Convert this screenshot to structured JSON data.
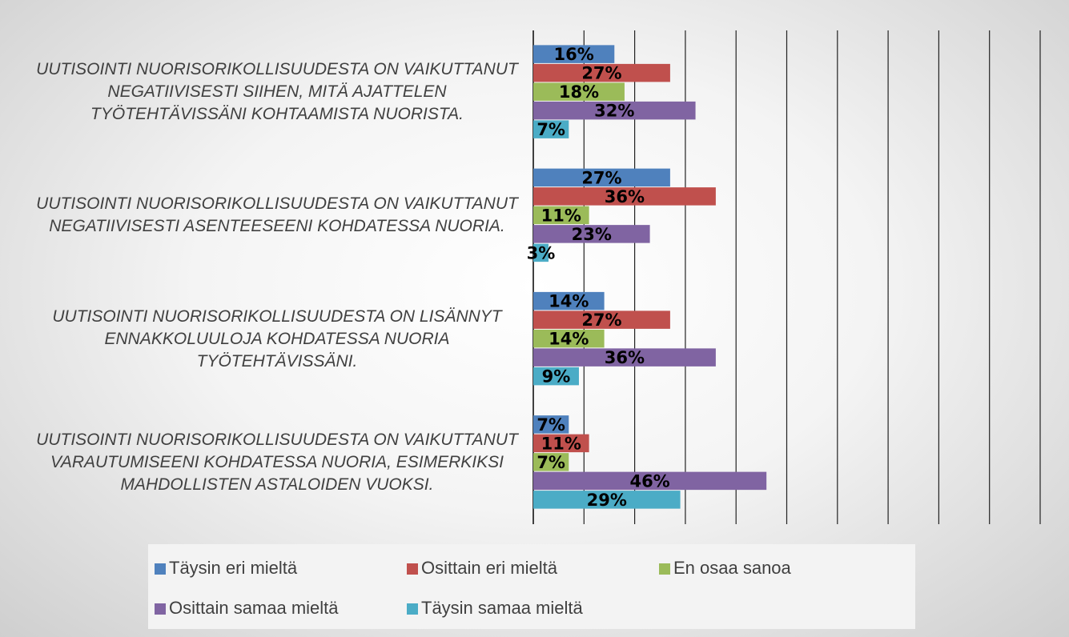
{
  "chart_data": {
    "type": "bar",
    "orientation": "horizontal",
    "categories": [
      "UUTISOINTI NUORISORIKOLLISUUDESTA ON VAIKUTTANUT NEGATIIVISESTI SIIHEN, MITÄ AJATTELEN TYÖTEHTÄVISSÄNI KOHTAAMISTA NUORISTA.",
      "UUTISOINTI NUORISORIKOLLISUUDESTA ON VAIKUTTANUT NEGATIIVISESTI ASENTEESEENI KOHDATESSA NUORIA.",
      "UUTISOINTI NUORISORIKOLLISUUDESTA ON LISÄNNYT ENNAKKOLUULOJA KOHDATESSA NUORIA TYÖTEHTÄVISSÄNI.",
      "UUTISOINTI NUORISORIKOLLISUUDESTA ON VAIKUTTANUT VARAUTUMISEENI KOHDATESSA NUORIA, ESIMERKIKSI MAHDOLLISTEN ASTALOIDEN VUOKSI."
    ],
    "series": [
      {
        "name": "Täysin eri mieltä",
        "color": "#4f81bd",
        "values": [
          16,
          27,
          14,
          7
        ],
        "value_labels": [
          "16%",
          "27%",
          "14%",
          "7%"
        ]
      },
      {
        "name": "Osittain eri mieltä",
        "color": "#c0504d",
        "values": [
          27,
          36,
          27,
          11
        ],
        "value_labels": [
          "27%",
          "36%",
          "27%",
          "11%"
        ]
      },
      {
        "name": "En osaa sanoa",
        "color": "#9bbb59",
        "values": [
          18,
          11,
          14,
          7
        ],
        "value_labels": [
          "18%",
          "11%",
          "14%",
          "7%"
        ]
      },
      {
        "name": "Osittain samaa mieltä",
        "color": "#8064a2",
        "values": [
          32,
          23,
          36,
          46
        ],
        "value_labels": [
          "32%",
          "23%",
          "36%",
          "46%"
        ]
      },
      {
        "name": "Täysin samaa mieltä",
        "color": "#4bacc6",
        "values": [
          7,
          3,
          9,
          29
        ],
        "value_labels": [
          "7%",
          "3%",
          "9%",
          "29%"
        ]
      }
    ],
    "xlim": [
      0,
      100
    ],
    "xticks": [
      0,
      10,
      20,
      30,
      40,
      50,
      60,
      70,
      80,
      90,
      100
    ],
    "grid": true,
    "legend": "bottom"
  }
}
